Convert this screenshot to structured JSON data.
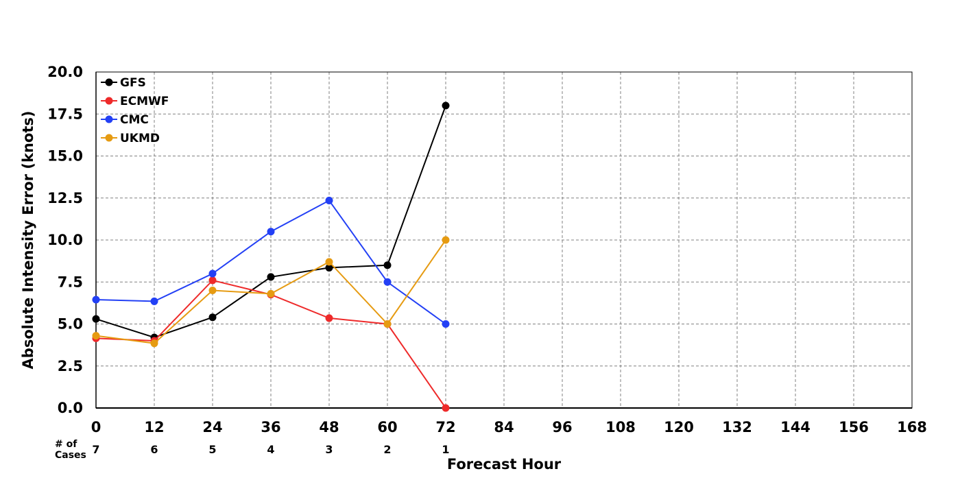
{
  "chart_data": {
    "type": "line",
    "xlabel": "Forecast Hour",
    "ylabel": "Absolute Intensity Error (knots)",
    "xlim": [
      0,
      168
    ],
    "ylim": [
      0,
      20
    ],
    "x_ticks": [
      0,
      12,
      24,
      36,
      48,
      60,
      72,
      84,
      96,
      108,
      120,
      132,
      144,
      156,
      168
    ],
    "y_ticks": [
      "0.0",
      "2.5",
      "5.0",
      "7.5",
      "10.0",
      "12.5",
      "15.0",
      "17.5",
      "20.0"
    ],
    "grid": true,
    "legend_position": "top-left",
    "cases_label_line1": "# of",
    "cases_label_line2": "Cases",
    "cases": [
      {
        "x": 0,
        "n": "7"
      },
      {
        "x": 12,
        "n": "6"
      },
      {
        "x": 24,
        "n": "5"
      },
      {
        "x": 36,
        "n": "4"
      },
      {
        "x": 48,
        "n": "3"
      },
      {
        "x": 60,
        "n": "2"
      },
      {
        "x": 72,
        "n": "1"
      }
    ],
    "x": [
      0,
      12,
      24,
      36,
      48,
      60,
      72
    ],
    "series": [
      {
        "name": "GFS",
        "color": "#000000",
        "values": [
          5.3,
          4.2,
          5.4,
          7.8,
          8.35,
          8.5,
          18.0
        ]
      },
      {
        "name": "ECMWF",
        "color": "#ee2a2a",
        "values": [
          4.15,
          4.0,
          7.6,
          6.75,
          5.35,
          5.0,
          0.0
        ]
      },
      {
        "name": "CMC",
        "color": "#2340f5",
        "values": [
          6.45,
          6.35,
          8.0,
          10.5,
          12.35,
          7.5,
          5.0
        ]
      },
      {
        "name": "UKMD",
        "color": "#e69b12",
        "values": [
          4.3,
          3.85,
          7.0,
          6.8,
          8.7,
          5.0,
          10.0
        ]
      }
    ]
  }
}
